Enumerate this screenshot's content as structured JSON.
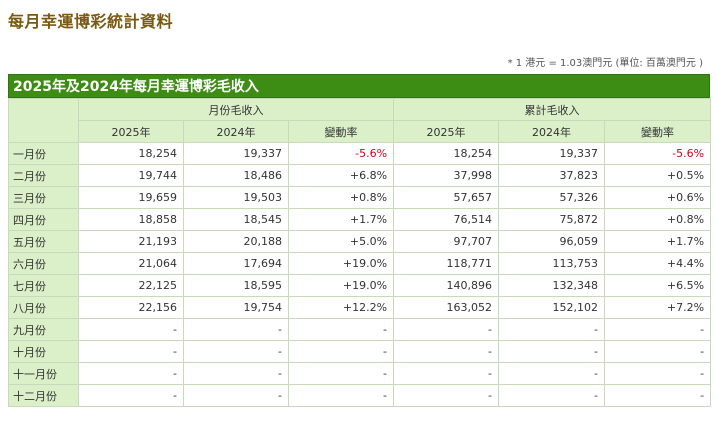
{
  "page_title": "每月幸運博彩統計資料",
  "note": "* 1 港元 = 1.03澳門元 (單位: 百萬澳門元 )",
  "table_title": "2025年及2024年每月幸運博彩毛收入",
  "group_headers": [
    "月份毛收入",
    "累計毛收入"
  ],
  "sub_headers": [
    "2025年",
    "2024年",
    "變動率",
    "2025年",
    "2024年",
    "變動率"
  ],
  "rows": [
    {
      "month": "一月份",
      "values": [
        "18,254",
        "19,337",
        "-5.6%",
        "18,254",
        "19,337",
        "-5.6%"
      ]
    },
    {
      "month": "二月份",
      "values": [
        "19,744",
        "18,486",
        "+6.8%",
        "37,998",
        "37,823",
        "+0.5%"
      ]
    },
    {
      "month": "三月份",
      "values": [
        "19,659",
        "19,503",
        "+0.8%",
        "57,657",
        "57,326",
        "+0.6%"
      ]
    },
    {
      "month": "四月份",
      "values": [
        "18,858",
        "18,545",
        "+1.7%",
        "76,514",
        "75,872",
        "+0.8%"
      ]
    },
    {
      "month": "五月份",
      "values": [
        "21,193",
        "20,188",
        "+5.0%",
        "97,707",
        "96,059",
        "+1.7%"
      ]
    },
    {
      "month": "六月份",
      "values": [
        "21,064",
        "17,694",
        "+19.0%",
        "118,771",
        "113,753",
        "+4.4%"
      ]
    },
    {
      "month": "七月份",
      "values": [
        "22,125",
        "18,595",
        "+19.0%",
        "140,896",
        "132,348",
        "+6.5%"
      ]
    },
    {
      "month": "八月份",
      "values": [
        "22,156",
        "19,754",
        "+12.2%",
        "163,052",
        "152,102",
        "+7.2%"
      ]
    },
    {
      "month": "九月份",
      "values": [
        "-",
        "-",
        "-",
        "-",
        "-",
        "-"
      ]
    },
    {
      "month": "十月份",
      "values": [
        "-",
        "-",
        "-",
        "-",
        "-",
        "-"
      ]
    },
    {
      "month": "十一月份",
      "values": [
        "-",
        "-",
        "-",
        "-",
        "-",
        "-"
      ]
    },
    {
      "month": "十二月份",
      "values": [
        "-",
        "-",
        "-",
        "-",
        "-",
        "-"
      ]
    }
  ],
  "colors": {
    "title_bar": "#3d8d14",
    "header_bg": "#dbefc9",
    "negative": "#d0021b",
    "page_title": "#7a5a10"
  }
}
